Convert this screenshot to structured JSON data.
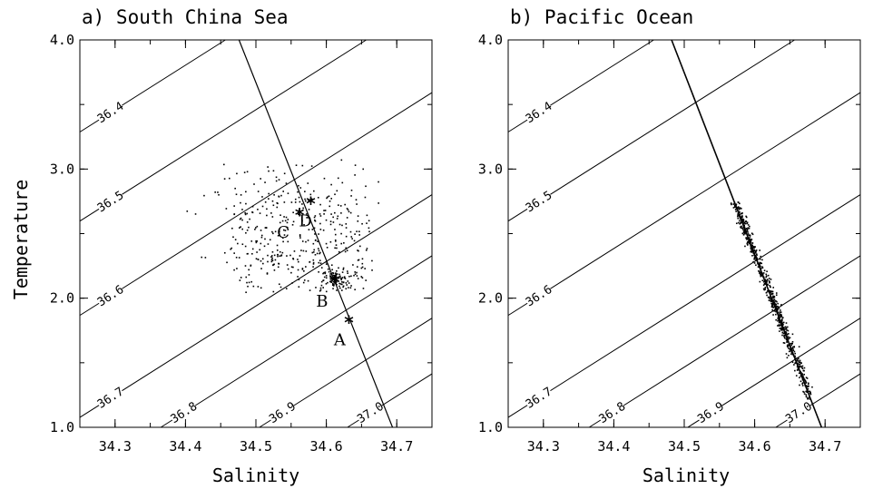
{
  "ylabel": "Temperature",
  "chart_data": [
    {
      "type": "scatter",
      "title": "a) South China Sea",
      "xlabel": "Salinity",
      "xlim": [
        34.25,
        34.75
      ],
      "ylim": [
        1.0,
        4.0
      ],
      "xticks": [
        "34.3",
        "34.4",
        "34.5",
        "34.6",
        "34.7"
      ],
      "yticks": [
        "1.0",
        "2.0",
        "3.0",
        "4.0"
      ],
      "density_contours": [
        {
          "label": "36.4",
          "anchor": [
            34.248,
            3.28
          ]
        },
        {
          "label": "36.5",
          "anchor": [
            34.248,
            2.59
          ]
        },
        {
          "label": "36.6",
          "anchor": [
            34.248,
            1.86
          ]
        },
        {
          "label": "36.7",
          "anchor": [
            34.248,
            1.07
          ]
        },
        {
          "label": "36.8",
          "anchor": [
            34.365,
            1.0
          ]
        },
        {
          "label": "36.9",
          "anchor": [
            34.505,
            1.0
          ]
        },
        {
          "label": "37.0",
          "anchor": [
            34.63,
            1.0
          ]
        }
      ],
      "mixing_line": [
        [
          34.476,
          4.0
        ],
        [
          34.694,
          1.0
        ]
      ],
      "stations": [
        {
          "label": "A",
          "s": 34.632,
          "t": 1.82
        },
        {
          "label": "B",
          "s": 34.612,
          "t": 2.13
        },
        {
          "label": "C",
          "s": 34.562,
          "t": 2.65
        },
        {
          "label": "D",
          "s": 34.578,
          "t": 2.74
        }
      ],
      "cloud": {
        "s_range": [
          34.4,
          34.68
        ],
        "t_range": [
          2.05,
          3.1
        ],
        "centre": [
          34.57,
          2.45
        ]
      }
    },
    {
      "type": "scatter",
      "title": "b) Pacific Ocean",
      "xlabel": "Salinity",
      "xlim": [
        34.25,
        34.75
      ],
      "ylim": [
        1.0,
        4.0
      ],
      "xticks": [
        "34.3",
        "34.4",
        "34.5",
        "34.6",
        "34.7"
      ],
      "yticks": [
        "1.0",
        "2.0",
        "3.0",
        "4.0"
      ],
      "density_contours": [
        {
          "label": "36.4",
          "anchor": [
            34.248,
            3.28
          ]
        },
        {
          "label": "36.5",
          "anchor": [
            34.248,
            2.59
          ]
        },
        {
          "label": "36.6",
          "anchor": [
            34.248,
            1.86
          ]
        },
        {
          "label": "36.7",
          "anchor": [
            34.248,
            1.07
          ]
        },
        {
          "label": "36.8",
          "anchor": [
            34.365,
            1.0
          ]
        },
        {
          "label": "36.9",
          "anchor": [
            34.505,
            1.0
          ]
        },
        {
          "label": "37.0",
          "anchor": [
            34.63,
            1.0
          ]
        }
      ],
      "mixing_line": [
        [
          34.482,
          4.0
        ],
        [
          34.695,
          1.0
        ]
      ],
      "cloud": {
        "s_range": [
          34.55,
          34.69
        ],
        "t_range": [
          1.22,
          2.75
        ]
      }
    }
  ]
}
